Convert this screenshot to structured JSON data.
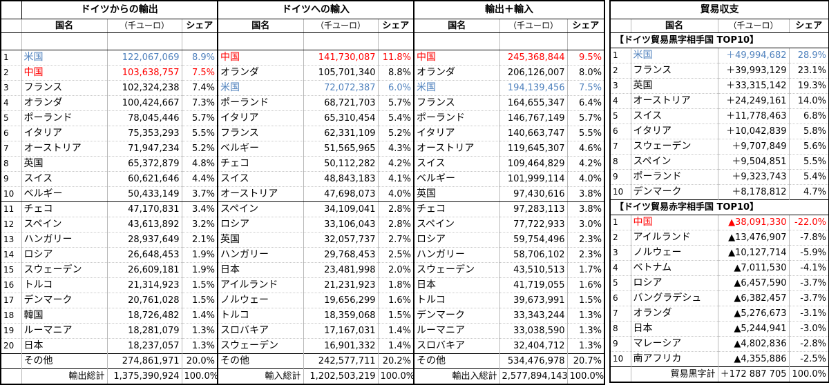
{
  "headers": {
    "export": "ドイツからの輸出",
    "import": "ドイツへの輸入",
    "total": "輸出＋輸入",
    "balance": "貿易収支"
  },
  "sub": {
    "name": "国名",
    "unit": "（千ユーロ）",
    "share": "シェア"
  },
  "export_rows": [
    {
      "rank": "1",
      "name": "米国",
      "value": "122,067,069",
      "share": "8.9%",
      "color": "blue"
    },
    {
      "rank": "2",
      "name": "中国",
      "value": "103,638,757",
      "share": "7.5%",
      "color": "red"
    },
    {
      "rank": "3",
      "name": "フランス",
      "value": "102,324,238",
      "share": "7.4%",
      "color": ""
    },
    {
      "rank": "4",
      "name": "オランダ",
      "value": "100,424,667",
      "share": "7.3%",
      "color": ""
    },
    {
      "rank": "5",
      "name": "ポーランド",
      "value": "78,045,446",
      "share": "5.7%",
      "color": ""
    },
    {
      "rank": "6",
      "name": "イタリア",
      "value": "75,353,293",
      "share": "5.5%",
      "color": ""
    },
    {
      "rank": "7",
      "name": "オーストリア",
      "value": "71,947,234",
      "share": "5.2%",
      "color": ""
    },
    {
      "rank": "8",
      "name": "英国",
      "value": "65,372,879",
      "share": "4.8%",
      "color": ""
    },
    {
      "rank": "9",
      "name": "スイス",
      "value": "60,621,646",
      "share": "4.4%",
      "color": ""
    },
    {
      "rank": "10",
      "name": "ベルギー",
      "value": "50,433,149",
      "share": "3.7%",
      "color": ""
    },
    {
      "rank": "11",
      "name": "チェコ",
      "value": "47,170,831",
      "share": "3.4%",
      "color": ""
    },
    {
      "rank": "12",
      "name": "スペイン",
      "value": "43,613,892",
      "share": "3.2%",
      "color": ""
    },
    {
      "rank": "13",
      "name": "ハンガリー",
      "value": "28,937,649",
      "share": "2.1%",
      "color": ""
    },
    {
      "rank": "14",
      "name": "ロシア",
      "value": "26,648,453",
      "share": "1.9%",
      "color": ""
    },
    {
      "rank": "15",
      "name": "スウェーデン",
      "value": "26,609,181",
      "share": "1.9%",
      "color": ""
    },
    {
      "rank": "16",
      "name": "トルコ",
      "value": "21,314,923",
      "share": "1.5%",
      "color": ""
    },
    {
      "rank": "17",
      "name": "デンマーク",
      "value": "20,761,028",
      "share": "1.5%",
      "color": ""
    },
    {
      "rank": "18",
      "name": "韓国",
      "value": "18,726,482",
      "share": "1.4%",
      "color": ""
    },
    {
      "rank": "19",
      "name": "ルーマニア",
      "value": "18,281,079",
      "share": "1.3%",
      "color": ""
    },
    {
      "rank": "20",
      "name": "日本",
      "value": "18,237,057",
      "share": "1.3%",
      "color": ""
    }
  ],
  "import_rows": [
    {
      "name": "中国",
      "value": "141,730,087",
      "share": "11.8%",
      "color": "red"
    },
    {
      "name": "オランダ",
      "value": "105,701,340",
      "share": "8.8%",
      "color": ""
    },
    {
      "name": "米国",
      "value": "72,072,387",
      "share": "6.0%",
      "color": "blue"
    },
    {
      "name": "ポーランド",
      "value": "68,721,703",
      "share": "5.7%",
      "color": ""
    },
    {
      "name": "イタリア",
      "value": "65,310,454",
      "share": "5.4%",
      "color": ""
    },
    {
      "name": "フランス",
      "value": "62,331,109",
      "share": "5.2%",
      "color": ""
    },
    {
      "name": "ベルギー",
      "value": "51,565,965",
      "share": "4.3%",
      "color": ""
    },
    {
      "name": "チェコ",
      "value": "50,112,282",
      "share": "4.2%",
      "color": ""
    },
    {
      "name": "スイス",
      "value": "48,843,183",
      "share": "4.1%",
      "color": ""
    },
    {
      "name": "オーストリア",
      "value": "47,698,073",
      "share": "4.0%",
      "color": ""
    },
    {
      "name": "スペイン",
      "value": "34,109,041",
      "share": "2.8%",
      "color": ""
    },
    {
      "name": "ロシア",
      "value": "33,106,043",
      "share": "2.8%",
      "color": ""
    },
    {
      "name": "英国",
      "value": "32,057,737",
      "share": "2.7%",
      "color": ""
    },
    {
      "name": "ハンガリー",
      "value": "29,768,453",
      "share": "2.5%",
      "color": ""
    },
    {
      "name": "日本",
      "value": "23,481,998",
      "share": "2.0%",
      "color": ""
    },
    {
      "name": "アイルランド",
      "value": "21,231,923",
      "share": "1.8%",
      "color": ""
    },
    {
      "name": "ノルウェー",
      "value": "19,656,299",
      "share": "1.6%",
      "color": ""
    },
    {
      "name": "トルコ",
      "value": "18,359,068",
      "share": "1.5%",
      "color": ""
    },
    {
      "name": "スロバキア",
      "value": "17,167,031",
      "share": "1.4%",
      "color": ""
    },
    {
      "name": "スウェーデン",
      "value": "16,901,332",
      "share": "1.4%",
      "color": ""
    }
  ],
  "total_rows": [
    {
      "name": "中国",
      "value": "245,368,844",
      "share": "9.5%",
      "color": "red"
    },
    {
      "name": "オランダ",
      "value": "206,126,007",
      "share": "8.0%",
      "color": ""
    },
    {
      "name": "米国",
      "value": "194,139,456",
      "share": "7.5%",
      "color": "blue"
    },
    {
      "name": "フランス",
      "value": "164,655,347",
      "share": "6.4%",
      "color": ""
    },
    {
      "name": "ポーランド",
      "value": "146,767,149",
      "share": "5.7%",
      "color": ""
    },
    {
      "name": "イタリア",
      "value": "140,663,747",
      "share": "5.5%",
      "color": ""
    },
    {
      "name": "オーストリア",
      "value": "119,645,307",
      "share": "4.6%",
      "color": ""
    },
    {
      "name": "スイス",
      "value": "109,464,829",
      "share": "4.2%",
      "color": ""
    },
    {
      "name": "ベルギー",
      "value": "101,999,114",
      "share": "4.0%",
      "color": ""
    },
    {
      "name": "英国",
      "value": "97,430,616",
      "share": "3.8%",
      "color": ""
    },
    {
      "name": "チェコ",
      "value": "97,283,113",
      "share": "3.8%",
      "color": ""
    },
    {
      "name": "スペイン",
      "value": "77,722,933",
      "share": "3.0%",
      "color": ""
    },
    {
      "name": "ロシア",
      "value": "59,754,496",
      "share": "2.3%",
      "color": ""
    },
    {
      "name": "ハンガリー",
      "value": "58,706,102",
      "share": "2.3%",
      "color": ""
    },
    {
      "name": "スウェーデン",
      "value": "43,510,513",
      "share": "1.7%",
      "color": ""
    },
    {
      "name": "日本",
      "value": "41,719,055",
      "share": "1.6%",
      "color": ""
    },
    {
      "name": "トルコ",
      "value": "39,673,991",
      "share": "1.5%",
      "color": ""
    },
    {
      "name": "デンマーク",
      "value": "33,343,244",
      "share": "1.3%",
      "color": ""
    },
    {
      "name": "ルーマニア",
      "value": "33,038,590",
      "share": "1.3%",
      "color": ""
    },
    {
      "name": "スロバキア",
      "value": "32,404,712",
      "share": "1.3%",
      "color": ""
    }
  ],
  "other": {
    "label": "その他",
    "export_value": "274,861,971",
    "export_share": "20.0%",
    "import_value": "242,577,711",
    "import_share": "20.2%",
    "total_value": "534,476,978",
    "total_share": "20.7%"
  },
  "totals": {
    "export_label": "輸出総計",
    "export_value": "1,375,390,924",
    "export_share": "100.0%",
    "import_label": "輸入総計",
    "import_value": "1,202,503,219",
    "import_share": "100.0%",
    "total_label": "輸出入総計",
    "total_value": "2,577,894,143",
    "total_share": "100.0%"
  },
  "balance": {
    "surplus_title": "【ドイツ貿易黒字相手国 TOP10】",
    "deficit_title": "【ドイツ貿易赤字相手国 TOP10】",
    "surplus_rows": [
      {
        "rank": "1",
        "name": "米国",
        "value": "＋49,994,682",
        "share": "28.9%",
        "color": "blue"
      },
      {
        "rank": "2",
        "name": "フランス",
        "value": "＋39,993,129",
        "share": "23.1%",
        "color": ""
      },
      {
        "rank": "3",
        "name": "英国",
        "value": "＋33,315,142",
        "share": "19.3%",
        "color": ""
      },
      {
        "rank": "4",
        "name": "オーストリア",
        "value": "＋24,249,161",
        "share": "14.0%",
        "color": ""
      },
      {
        "rank": "5",
        "name": "スイス",
        "value": "＋11,778,463",
        "share": "6.8%",
        "color": ""
      },
      {
        "rank": "6",
        "name": "イタリア",
        "value": "＋10,042,839",
        "share": "5.8%",
        "color": ""
      },
      {
        "rank": "7",
        "name": "スウェーデン",
        "value": "＋9,707,849",
        "share": "5.6%",
        "color": ""
      },
      {
        "rank": "8",
        "name": "スペイン",
        "value": "＋9,504,851",
        "share": "5.5%",
        "color": ""
      },
      {
        "rank": "9",
        "name": "ポーランド",
        "value": "＋9,323,743",
        "share": "5.4%",
        "color": ""
      },
      {
        "rank": "10",
        "name": "デンマーク",
        "value": "＋8,178,812",
        "share": "4.7%",
        "color": ""
      }
    ],
    "deficit_rows": [
      {
        "rank": "1",
        "name": "中国",
        "value": "▲38,091,330",
        "share": "-22.0%",
        "color": "red"
      },
      {
        "rank": "2",
        "name": "アイルランド",
        "value": "▲13,476,907",
        "share": "-7.8%",
        "color": ""
      },
      {
        "rank": "3",
        "name": "ノルウェー",
        "value": "▲10,127,714",
        "share": "-5.9%",
        "color": ""
      },
      {
        "rank": "4",
        "name": "ベトナム",
        "value": "▲7,011,530",
        "share": "-4.1%",
        "color": ""
      },
      {
        "rank": "5",
        "name": "ロシア",
        "value": "▲6,457,590",
        "share": "-3.7%",
        "color": ""
      },
      {
        "rank": "6",
        "name": "バングラデシュ",
        "value": "▲6,382,457",
        "share": "-3.7%",
        "color": ""
      },
      {
        "rank": "7",
        "name": "オランダ",
        "value": "▲5,276,673",
        "share": "-3.1%",
        "color": ""
      },
      {
        "rank": "8",
        "name": "日本",
        "value": "▲5,244,941",
        "share": "-3.0%",
        "color": ""
      },
      {
        "rank": "9",
        "name": "マレーシア",
        "value": "▲4,802,836",
        "share": "-2.8%",
        "color": ""
      },
      {
        "rank": "10",
        "name": "南アフリカ",
        "value": "▲4,355,886",
        "share": "-2.5%",
        "color": ""
      }
    ],
    "total_label": "貿易黒字計",
    "total_value": "＋172 887 705",
    "total_share": "100.0%"
  }
}
